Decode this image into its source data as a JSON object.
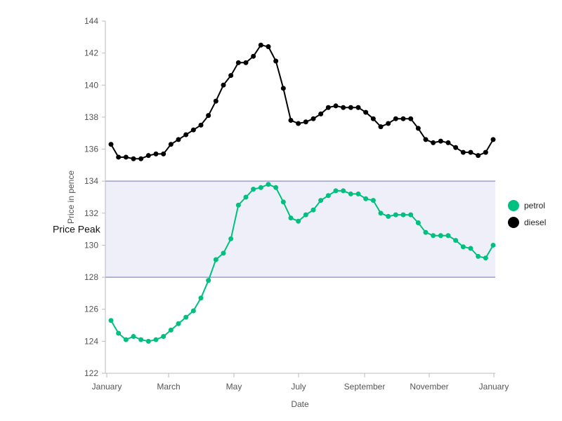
{
  "chart_data": {
    "type": "line",
    "xlabel": "Date",
    "ylabel": "Price in pence",
    "ylim": [
      122,
      144
    ],
    "y_ticks": [
      122,
      124,
      126,
      128,
      130,
      132,
      134,
      136,
      138,
      140,
      142,
      144
    ],
    "x_ticks": [
      "January",
      "March",
      "May",
      "July",
      "September",
      "November",
      "January"
    ],
    "band": {
      "label": "Price Peak",
      "from": 128,
      "to": 134,
      "fill": "#eeeff8",
      "stroke": "#9a9fd0"
    },
    "legend_position": "right",
    "series": [
      {
        "name": "petrol",
        "color": "#00c07f",
        "values": [
          125.3,
          124.5,
          124.1,
          124.3,
          124.1,
          124.0,
          124.1,
          124.3,
          124.7,
          125.1,
          125.5,
          125.9,
          126.7,
          127.8,
          129.1,
          129.5,
          130.4,
          132.5,
          133.0,
          133.5,
          133.6,
          133.8,
          133.6,
          132.7,
          131.7,
          131.5,
          131.9,
          132.2,
          132.8,
          133.1,
          133.4,
          133.4,
          133.2,
          133.2,
          132.9,
          132.8,
          132.0,
          131.8,
          131.9,
          131.9,
          131.9,
          131.4,
          130.8,
          130.6,
          130.6,
          130.6,
          130.3,
          129.9,
          129.8,
          129.3,
          129.2,
          130.0
        ]
      },
      {
        "name": "diesel",
        "color": "#000000",
        "values": [
          136.3,
          135.5,
          135.5,
          135.4,
          135.4,
          135.6,
          135.7,
          135.7,
          136.3,
          136.6,
          136.9,
          137.2,
          137.5,
          138.1,
          139.0,
          140.0,
          140.6,
          141.4,
          141.4,
          141.8,
          142.5,
          142.4,
          141.5,
          139.8,
          137.8,
          137.6,
          137.7,
          137.9,
          138.2,
          138.6,
          138.7,
          138.6,
          138.6,
          138.6,
          138.3,
          137.9,
          137.4,
          137.6,
          137.9,
          137.9,
          137.9,
          137.3,
          136.6,
          136.4,
          136.5,
          136.4,
          136.1,
          135.8,
          135.8,
          135.6,
          135.8,
          136.6
        ]
      }
    ]
  }
}
